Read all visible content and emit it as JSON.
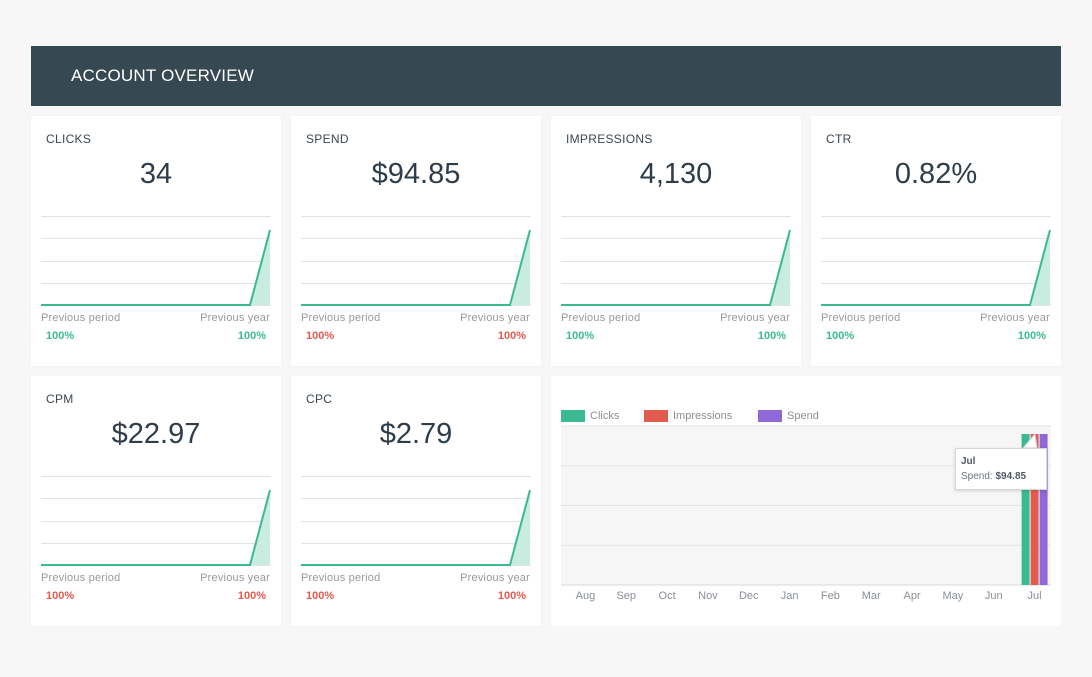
{
  "header": {
    "title": "ACCOUNT OVERVIEW"
  },
  "captions": {
    "previous_period": "Previous period",
    "previous_year": "Previous year"
  },
  "colors": {
    "positive": "#3aba93",
    "negative": "#e35a4e",
    "header": "#364953"
  },
  "cards": [
    {
      "label": "CLICKS",
      "value": "34",
      "previous_period_change": "100%",
      "previous_period_trend": "positive",
      "previous_year_change": "100%",
      "previous_year_trend": "positive"
    },
    {
      "label": "SPEND",
      "value": "$94.85",
      "previous_period_change": "100%",
      "previous_period_trend": "negative",
      "previous_year_change": "100%",
      "previous_year_trend": "negative"
    },
    {
      "label": "IMPRESSIONS",
      "value": "4,130",
      "previous_period_change": "100%",
      "previous_period_trend": "positive",
      "previous_year_change": "100%",
      "previous_year_trend": "positive"
    },
    {
      "label": "CTR",
      "value": "0.82%",
      "previous_period_change": "100%",
      "previous_period_trend": "positive",
      "previous_year_change": "100%",
      "previous_year_trend": "positive"
    },
    {
      "label": "CPM",
      "value": "$22.97",
      "previous_period_change": "100%",
      "previous_period_trend": "negative",
      "previous_year_change": "100%",
      "previous_year_trend": "negative"
    },
    {
      "label": "CPC",
      "value": "$2.79",
      "previous_period_change": "100%",
      "previous_period_trend": "negative",
      "previous_year_change": "100%",
      "previous_year_trend": "negative"
    }
  ],
  "chart_data": {
    "type": "bar",
    "categories": [
      "Aug",
      "Sep",
      "Oct",
      "Nov",
      "Dec",
      "Jan",
      "Feb",
      "Mar",
      "Apr",
      "May",
      "Jun",
      "Jul"
    ],
    "series": [
      {
        "name": "Clicks",
        "color": "#3aba93",
        "values": [
          0,
          0,
          0,
          0,
          0,
          0,
          0,
          0,
          0,
          0,
          0,
          1
        ]
      },
      {
        "name": "Impressions",
        "color": "#e35a4e",
        "values": [
          0,
          0,
          0,
          0,
          0,
          0,
          0,
          0,
          0,
          0,
          0,
          1
        ]
      },
      {
        "name": "Spend",
        "color": "#9068d8",
        "values": [
          0,
          0,
          0,
          0,
          0,
          0,
          0,
          0,
          0,
          0,
          0,
          1
        ]
      }
    ],
    "grid": true,
    "legend_position": "top-left",
    "tooltip": {
      "title": "Jul",
      "label": "Spend:",
      "value": "$94.85"
    }
  }
}
